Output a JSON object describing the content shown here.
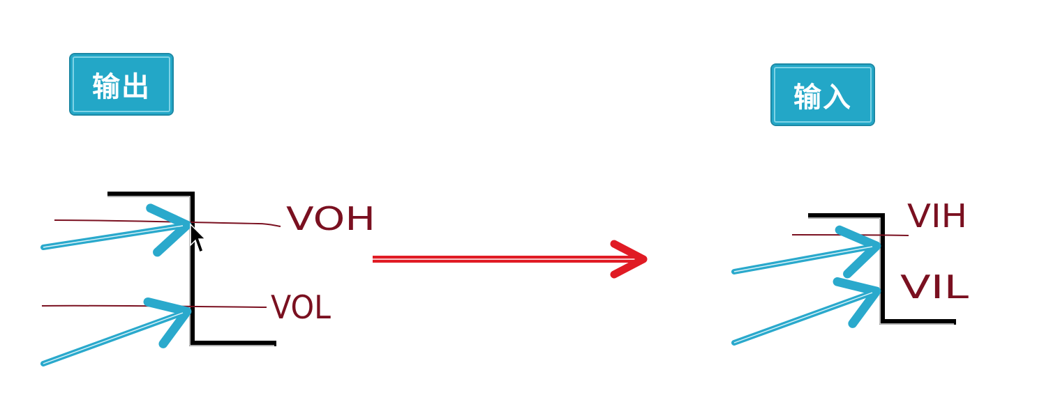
{
  "output_panel": {
    "title": "输出"
  },
  "input_panel": {
    "title": "输入"
  },
  "annotations": {
    "voh": "VOH",
    "vol": "VOL",
    "vih": "VIH",
    "vil": "VIL"
  },
  "colors": {
    "label_bg": "#23a7c7",
    "pointer_arrow": "#2aa9cc",
    "transition_arrow": "#e01b24",
    "handwriting": "#7a1020",
    "waveform": "#000000"
  }
}
